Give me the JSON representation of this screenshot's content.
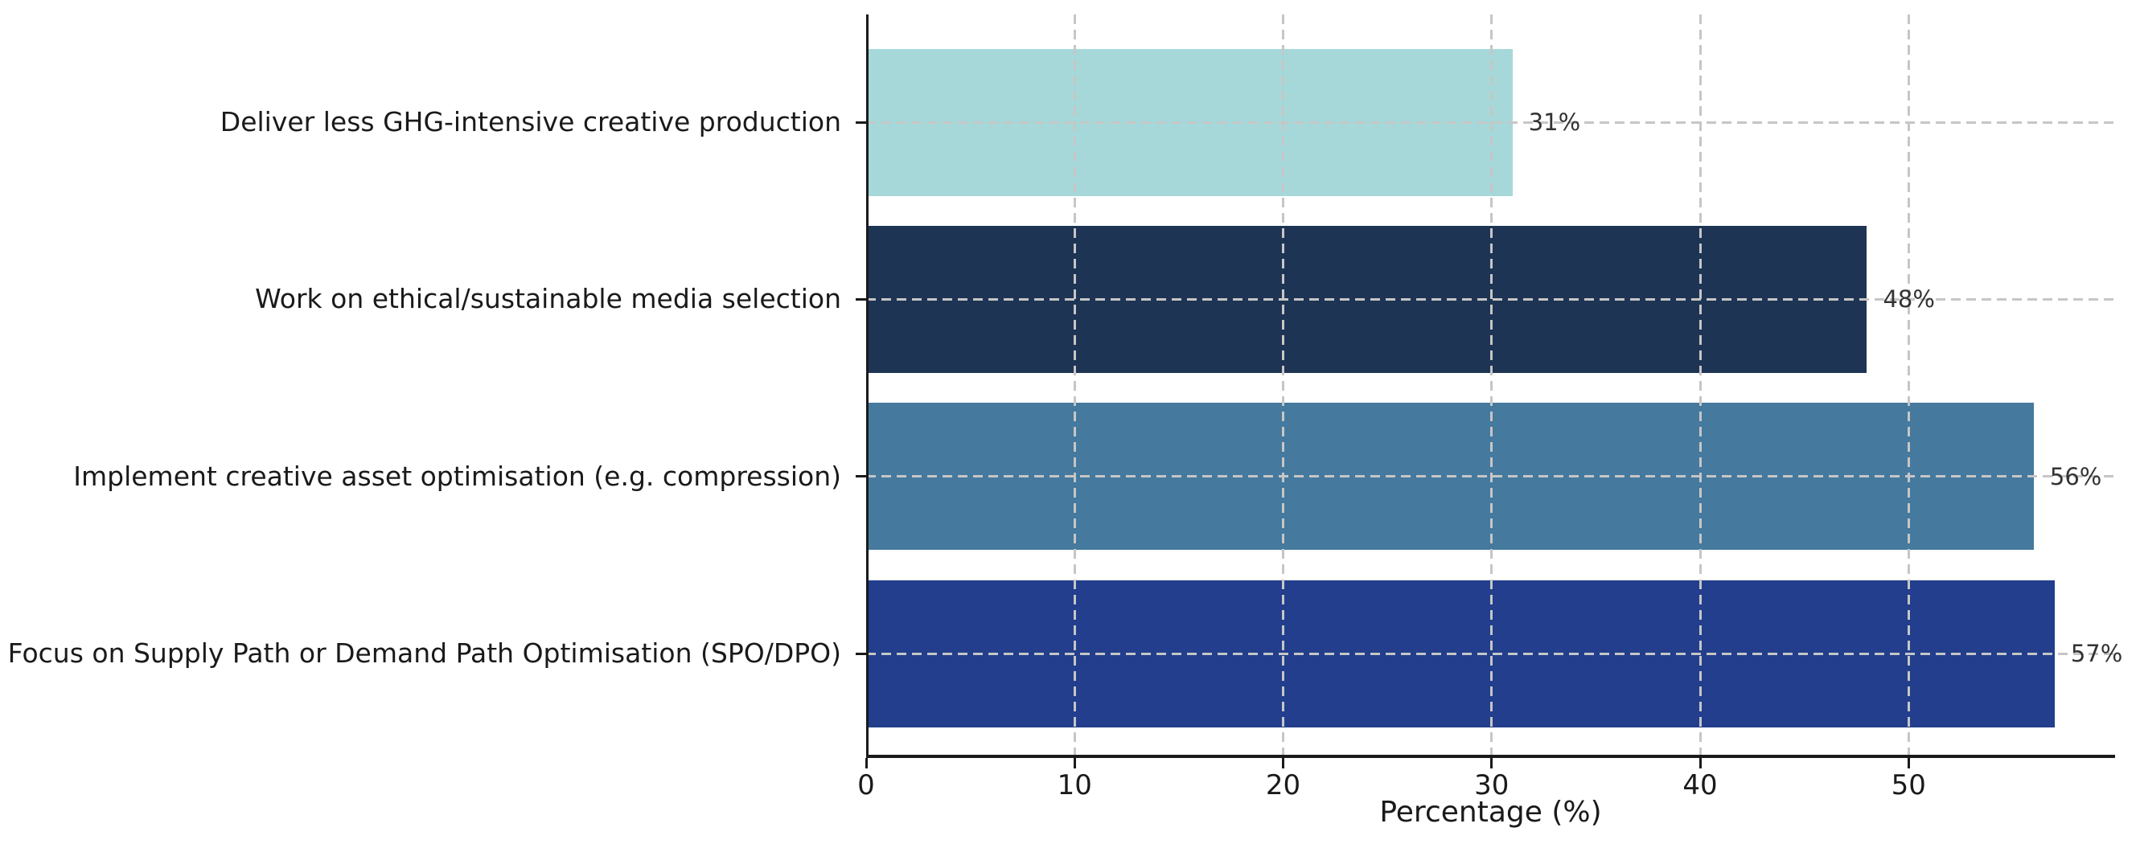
{
  "chart_data": {
    "type": "bar",
    "orientation": "horizontal",
    "title": "",
    "xlabel": "Percentage (%)",
    "ylabel": "",
    "categories": [
      "Deliver less GHG-intensive creative production",
      "Work on ethical/sustainable media selection",
      "Implement creative asset optimisation (e.g. compression)",
      "Focus on Supply Path or Demand Path Optimisation (SPO/DPO)"
    ],
    "values": [
      31,
      48,
      56,
      57
    ],
    "value_labels": [
      "31%",
      "48%",
      "56%",
      "57%"
    ],
    "bar_colors": [
      "#a6d8da",
      "#1e3455",
      "#45799e",
      "#223e8c"
    ],
    "xlim": [
      0,
      59.9
    ],
    "xticks": [
      0,
      10,
      20,
      30,
      40,
      50
    ],
    "xtick_labels": [
      "0",
      "10",
      "20",
      "30",
      "40",
      "50"
    ],
    "grid": "dashed",
    "grid_color": "#c6c6c6",
    "axis_color": "#1a1a1a",
    "tick_label_color": "#1a1a1a",
    "value_label_color": "#333333",
    "background_color": "#ffffff",
    "legend": ""
  }
}
